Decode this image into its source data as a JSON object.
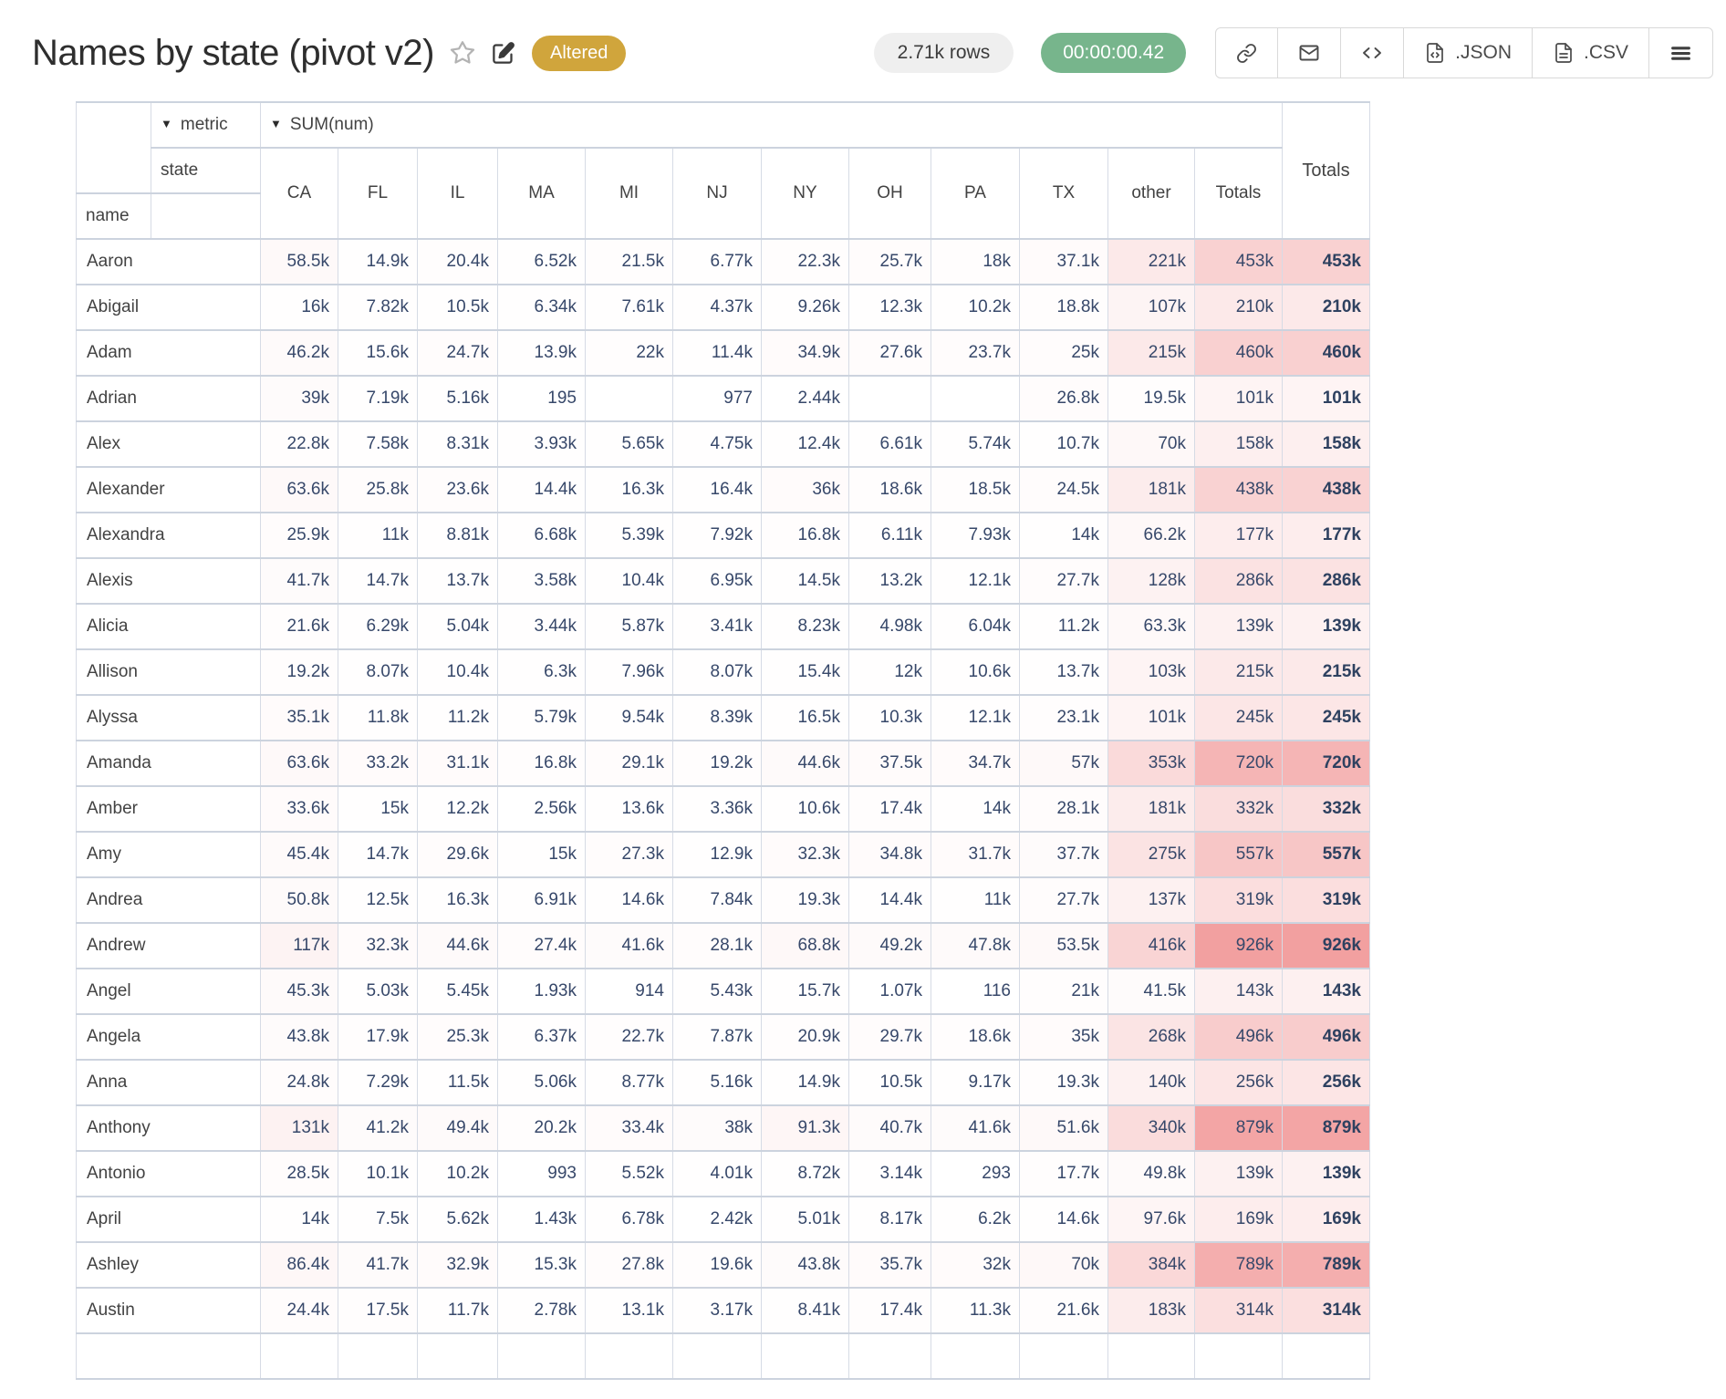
{
  "header": {
    "title": "Names by state (pivot v2)",
    "badges": {
      "altered": "Altered",
      "rows": "2.71k rows",
      "duration": "00:00:00.42"
    },
    "toolbar": {
      "json_label": ".JSON",
      "csv_label": ".CSV"
    }
  },
  "colors": {
    "altered_bg": "#d0a53c",
    "duration_bg": "#77b58c",
    "heat_rgb": "231,76,76",
    "heat_max_alpha": 0.53
  },
  "pivot": {
    "metric_label": "metric",
    "metric_value": "SUM(num)",
    "col_dimension": "state",
    "row_dimension": "name",
    "totals_label": "Totals",
    "columns": [
      "CA",
      "FL",
      "IL",
      "MA",
      "MI",
      "NJ",
      "NY",
      "OH",
      "PA",
      "TX",
      "other",
      "Totals"
    ],
    "rows": [
      {
        "name": "Aaron",
        "cells": [
          "58.5k",
          "14.9k",
          "20.4k",
          "6.52k",
          "21.5k",
          "6.77k",
          "22.3k",
          "25.7k",
          "18k",
          "37.1k",
          "221k",
          "453k"
        ],
        "total": "453k"
      },
      {
        "name": "Abigail",
        "cells": [
          "16k",
          "7.82k",
          "10.5k",
          "6.34k",
          "7.61k",
          "4.37k",
          "9.26k",
          "12.3k",
          "10.2k",
          "18.8k",
          "107k",
          "210k"
        ],
        "total": "210k"
      },
      {
        "name": "Adam",
        "cells": [
          "46.2k",
          "15.6k",
          "24.7k",
          "13.9k",
          "22k",
          "11.4k",
          "34.9k",
          "27.6k",
          "23.7k",
          "25k",
          "215k",
          "460k"
        ],
        "total": "460k"
      },
      {
        "name": "Adrian",
        "cells": [
          "39k",
          "7.19k",
          "5.16k",
          "195",
          "",
          "977",
          "2.44k",
          "",
          "",
          "26.8k",
          "19.5k",
          "101k"
        ],
        "total": "101k"
      },
      {
        "name": "Alex",
        "cells": [
          "22.8k",
          "7.58k",
          "8.31k",
          "3.93k",
          "5.65k",
          "4.75k",
          "12.4k",
          "6.61k",
          "5.74k",
          "10.7k",
          "70k",
          "158k"
        ],
        "total": "158k"
      },
      {
        "name": "Alexander",
        "cells": [
          "63.6k",
          "25.8k",
          "23.6k",
          "14.4k",
          "16.3k",
          "16.4k",
          "36k",
          "18.6k",
          "18.5k",
          "24.5k",
          "181k",
          "438k"
        ],
        "total": "438k"
      },
      {
        "name": "Alexandra",
        "cells": [
          "25.9k",
          "11k",
          "8.81k",
          "6.68k",
          "5.39k",
          "7.92k",
          "16.8k",
          "6.11k",
          "7.93k",
          "14k",
          "66.2k",
          "177k"
        ],
        "total": "177k"
      },
      {
        "name": "Alexis",
        "cells": [
          "41.7k",
          "14.7k",
          "13.7k",
          "3.58k",
          "10.4k",
          "6.95k",
          "14.5k",
          "13.2k",
          "12.1k",
          "27.7k",
          "128k",
          "286k"
        ],
        "total": "286k"
      },
      {
        "name": "Alicia",
        "cells": [
          "21.6k",
          "6.29k",
          "5.04k",
          "3.44k",
          "5.87k",
          "3.41k",
          "8.23k",
          "4.98k",
          "6.04k",
          "11.2k",
          "63.3k",
          "139k"
        ],
        "total": "139k"
      },
      {
        "name": "Allison",
        "cells": [
          "19.2k",
          "8.07k",
          "10.4k",
          "6.3k",
          "7.96k",
          "8.07k",
          "15.4k",
          "12k",
          "10.6k",
          "13.7k",
          "103k",
          "215k"
        ],
        "total": "215k"
      },
      {
        "name": "Alyssa",
        "cells": [
          "35.1k",
          "11.8k",
          "11.2k",
          "5.79k",
          "9.54k",
          "8.39k",
          "16.5k",
          "10.3k",
          "12.1k",
          "23.1k",
          "101k",
          "245k"
        ],
        "total": "245k"
      },
      {
        "name": "Amanda",
        "cells": [
          "63.6k",
          "33.2k",
          "31.1k",
          "16.8k",
          "29.1k",
          "19.2k",
          "44.6k",
          "37.5k",
          "34.7k",
          "57k",
          "353k",
          "720k"
        ],
        "total": "720k"
      },
      {
        "name": "Amber",
        "cells": [
          "33.6k",
          "15k",
          "12.2k",
          "2.56k",
          "13.6k",
          "3.36k",
          "10.6k",
          "17.4k",
          "14k",
          "28.1k",
          "181k",
          "332k"
        ],
        "total": "332k"
      },
      {
        "name": "Amy",
        "cells": [
          "45.4k",
          "14.7k",
          "29.6k",
          "15k",
          "27.3k",
          "12.9k",
          "32.3k",
          "34.8k",
          "31.7k",
          "37.7k",
          "275k",
          "557k"
        ],
        "total": "557k"
      },
      {
        "name": "Andrea",
        "cells": [
          "50.8k",
          "12.5k",
          "16.3k",
          "6.91k",
          "14.6k",
          "7.84k",
          "19.3k",
          "14.4k",
          "11k",
          "27.7k",
          "137k",
          "319k"
        ],
        "total": "319k"
      },
      {
        "name": "Andrew",
        "cells": [
          "117k",
          "32.3k",
          "44.6k",
          "27.4k",
          "41.6k",
          "28.1k",
          "68.8k",
          "49.2k",
          "47.8k",
          "53.5k",
          "416k",
          "926k"
        ],
        "total": "926k"
      },
      {
        "name": "Angel",
        "cells": [
          "45.3k",
          "5.03k",
          "5.45k",
          "1.93k",
          "914",
          "5.43k",
          "15.7k",
          "1.07k",
          "116",
          "21k",
          "41.5k",
          "143k"
        ],
        "total": "143k"
      },
      {
        "name": "Angela",
        "cells": [
          "43.8k",
          "17.9k",
          "25.3k",
          "6.37k",
          "22.7k",
          "7.87k",
          "20.9k",
          "29.7k",
          "18.6k",
          "35k",
          "268k",
          "496k"
        ],
        "total": "496k"
      },
      {
        "name": "Anna",
        "cells": [
          "24.8k",
          "7.29k",
          "11.5k",
          "5.06k",
          "8.77k",
          "5.16k",
          "14.9k",
          "10.5k",
          "9.17k",
          "19.3k",
          "140k",
          "256k"
        ],
        "total": "256k"
      },
      {
        "name": "Anthony",
        "cells": [
          "131k",
          "41.2k",
          "49.4k",
          "20.2k",
          "33.4k",
          "38k",
          "91.3k",
          "40.7k",
          "41.6k",
          "51.6k",
          "340k",
          "879k"
        ],
        "total": "879k"
      },
      {
        "name": "Antonio",
        "cells": [
          "28.5k",
          "10.1k",
          "10.2k",
          "993",
          "5.52k",
          "4.01k",
          "8.72k",
          "3.14k",
          "293",
          "17.7k",
          "49.8k",
          "139k"
        ],
        "total": "139k"
      },
      {
        "name": "April",
        "cells": [
          "14k",
          "7.5k",
          "5.62k",
          "1.43k",
          "6.78k",
          "2.42k",
          "5.01k",
          "8.17k",
          "6.2k",
          "14.6k",
          "97.6k",
          "169k"
        ],
        "total": "169k"
      },
      {
        "name": "Ashley",
        "cells": [
          "86.4k",
          "41.7k",
          "32.9k",
          "15.3k",
          "27.8k",
          "19.6k",
          "43.8k",
          "35.7k",
          "32k",
          "70k",
          "384k",
          "789k"
        ],
        "total": "789k"
      },
      {
        "name": "Austin",
        "cells": [
          "24.4k",
          "17.5k",
          "11.7k",
          "2.78k",
          "13.1k",
          "3.17k",
          "8.41k",
          "17.4k",
          "11.3k",
          "21.6k",
          "183k",
          "314k"
        ],
        "total": "314k"
      }
    ]
  }
}
